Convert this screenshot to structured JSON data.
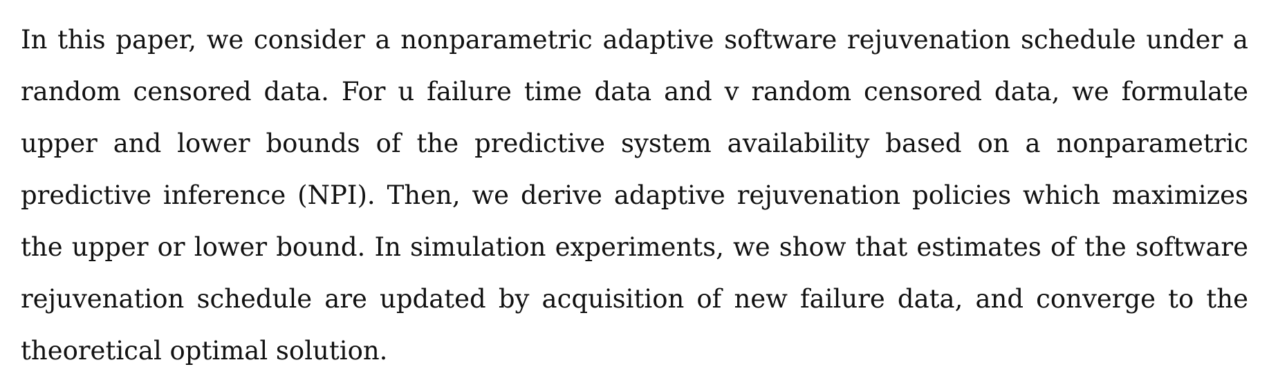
{
  "document": {
    "abstract_text": "In this paper, we consider a nonparametric adaptive software rejuvenation schedule under a random censored data. For u failure time data and v random censored data, we formulate upper and lower bounds of the predictive system availability based on a nonparametric predictive inference (NPI). Then, we derive adaptive rejuvenation policies which maximizes the upper or lower bound. In simulation experiments, we show that estimates of the software rejuvenation schedule are updated by acquisition of new failure data, and converge to the theoretical optimal solution."
  }
}
